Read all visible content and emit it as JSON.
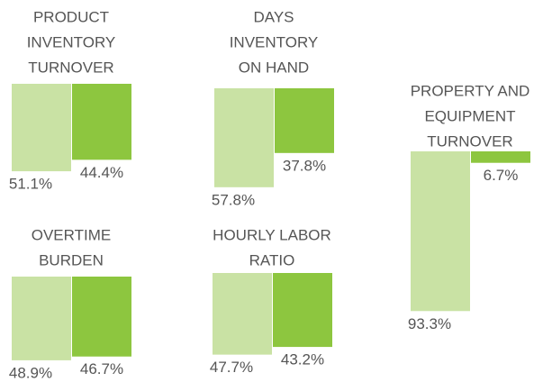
{
  "chart_data": [
    {
      "type": "bar",
      "title": [
        "PRODUCT",
        "INVENTORY",
        "TURNOVER"
      ],
      "values": [
        51.1,
        44.4
      ],
      "value_labels": [
        "51.1%",
        "44.4%"
      ],
      "colors": [
        "#c9e2a4",
        "#8dc63f"
      ],
      "ylim": [
        0,
        100
      ]
    },
    {
      "type": "bar",
      "title": [
        "DAYS",
        "INVENTORY",
        "ON HAND"
      ],
      "values": [
        57.8,
        37.8
      ],
      "value_labels": [
        "57.8%",
        "37.8%"
      ],
      "colors": [
        "#c9e2a4",
        "#8dc63f"
      ],
      "ylim": [
        0,
        100
      ]
    },
    {
      "type": "bar",
      "title": [
        "PROPERTY AND",
        "EQUIPMENT",
        "TURNOVER"
      ],
      "values": [
        93.3,
        6.7
      ],
      "value_labels": [
        "93.3%",
        "6.7%"
      ],
      "colors": [
        "#c9e2a4",
        "#8dc63f"
      ],
      "ylim": [
        0,
        100
      ]
    },
    {
      "type": "bar",
      "title": [
        "OVERTIME",
        "BURDEN"
      ],
      "values": [
        48.9,
        46.7
      ],
      "value_labels": [
        "48.9%",
        "46.7%"
      ],
      "colors": [
        "#c9e2a4",
        "#8dc63f"
      ],
      "ylim": [
        0,
        100
      ]
    },
    {
      "type": "bar",
      "title": [
        "HOURLY LABOR",
        "RATIO"
      ],
      "values": [
        47.7,
        43.2
      ],
      "value_labels": [
        "47.7%",
        "43.2%"
      ],
      "colors": [
        "#c9e2a4",
        "#8dc63f"
      ],
      "ylim": [
        0,
        100
      ]
    }
  ]
}
